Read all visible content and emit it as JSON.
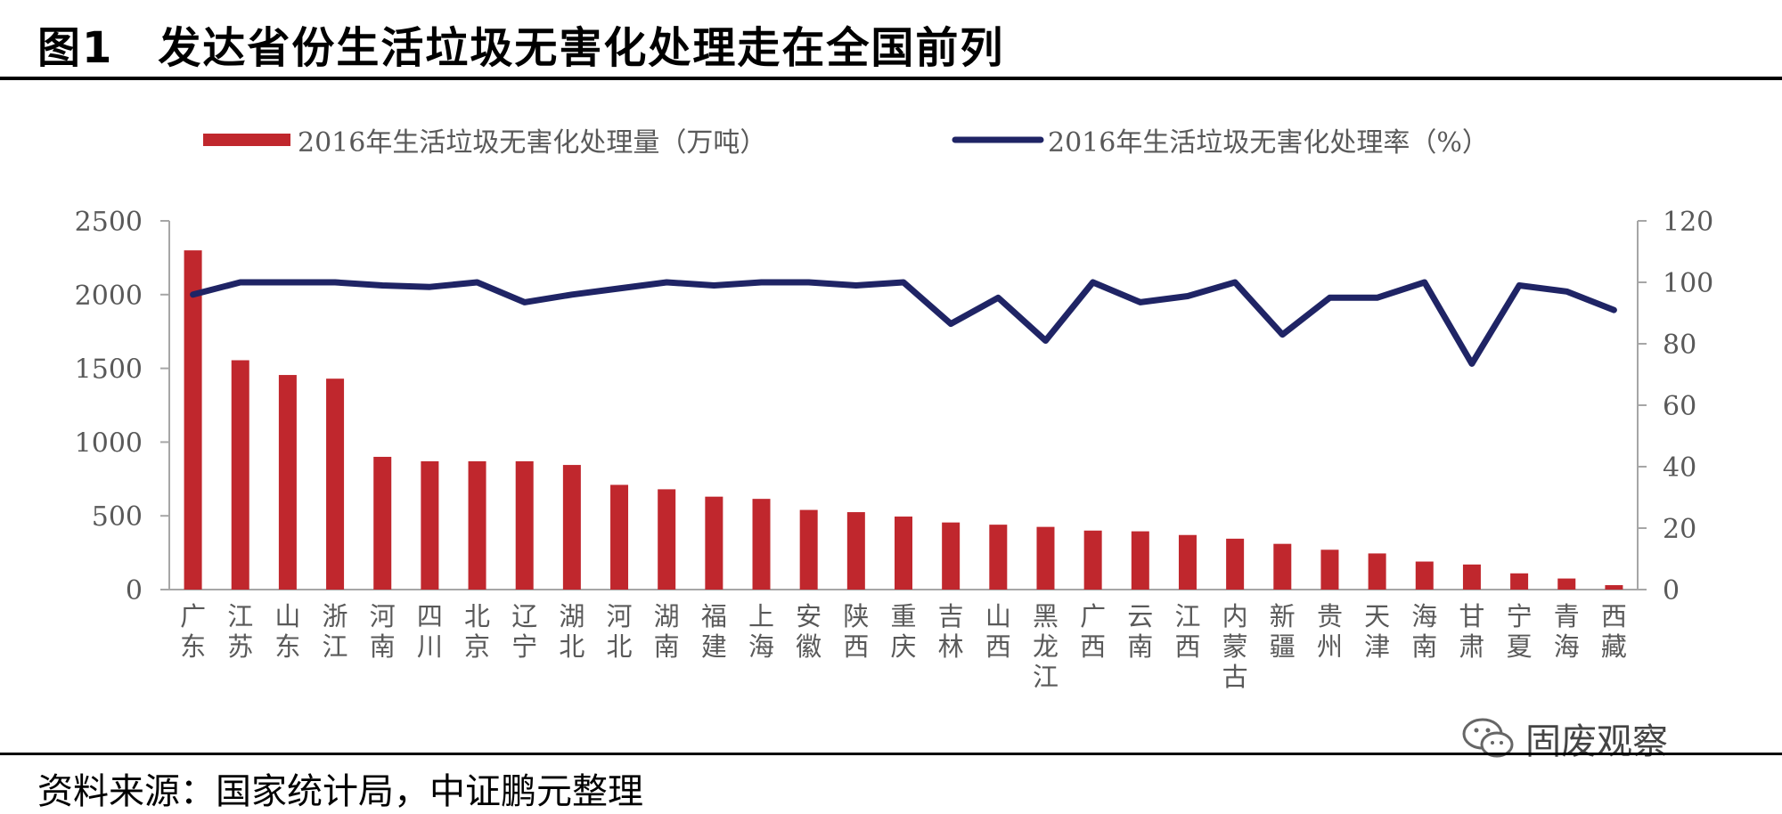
{
  "header": {
    "title": "图1　发达省份生活垃圾无害化处理走在全国前列"
  },
  "footer": {
    "source": "资料来源：国家统计局，中证鹏元整理"
  },
  "watermark": {
    "text": "固废观察",
    "icon": "wechat-icon"
  },
  "colors": {
    "bar": "#c0272d",
    "line": "#1f2465",
    "axis": "#a6a6a6",
    "text": "#595959"
  },
  "chart_data": {
    "type": "bar",
    "categories": [
      "广东",
      "江苏",
      "山东",
      "浙江",
      "河南",
      "四川",
      "北京",
      "辽宁",
      "湖北",
      "河北",
      "湖南",
      "福建",
      "上海",
      "安徽",
      "陕西",
      "重庆",
      "吉林",
      "山西",
      "黑龙江",
      "广西",
      "云南",
      "江西",
      "内蒙古",
      "新疆",
      "贵州",
      "天津",
      "海南",
      "甘肃",
      "宁夏",
      "青海",
      "西藏"
    ],
    "series": [
      {
        "name": "2016年生活垃圾无害化处理量（万吨）",
        "type": "bar",
        "axis": "left",
        "values": [
          2300,
          1555,
          1455,
          1430,
          900,
          870,
          870,
          870,
          845,
          710,
          680,
          630,
          615,
          540,
          525,
          495,
          455,
          440,
          425,
          400,
          395,
          370,
          345,
          310,
          270,
          245,
          190,
          170,
          110,
          75,
          30
        ]
      },
      {
        "name": "2016年生活垃圾无害化处理率（%）",
        "type": "line",
        "axis": "right",
        "values": [
          96,
          100,
          100,
          100,
          99,
          98.5,
          100,
          93.5,
          96,
          98,
          100,
          99,
          100,
          100,
          99,
          100,
          86.5,
          95,
          81,
          100,
          93.5,
          95.5,
          100,
          83,
          95,
          95,
          100,
          73.5,
          99,
          97,
          91
        ]
      }
    ],
    "y_left": {
      "min": 0,
      "max": 2500,
      "ticks": [
        "0",
        "500",
        "1000",
        "1500",
        "2000",
        "2500"
      ]
    },
    "y_right": {
      "min": 0,
      "max": 120,
      "ticks": [
        "0",
        "20",
        "40",
        "60",
        "80",
        "100",
        "120"
      ]
    },
    "legend_position": "top",
    "grid": false
  }
}
